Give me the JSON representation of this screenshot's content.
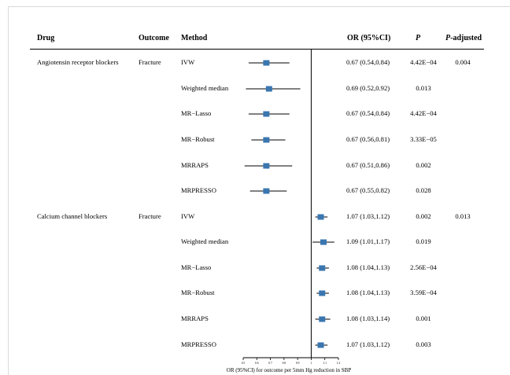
{
  "headers": {
    "drug": "Drug",
    "outcome": "Outcome",
    "method": "Method",
    "or": "OR (95%CI)",
    "p": "P",
    "p_adjusted": "P-adjusted"
  },
  "rows": [
    {
      "drug": "Angiotensin receptor blockers",
      "outcome": "Fracture",
      "method": "IVW",
      "or_text": "0.67 (0.54,0.84)",
      "p": "4.42E−04",
      "p_adjusted": "0.004"
    },
    {
      "drug": "",
      "outcome": "",
      "method": "Weighted median",
      "or_text": "0.69 (0.52,0.92)",
      "p": "0.013",
      "p_adjusted": ""
    },
    {
      "drug": "",
      "outcome": "",
      "method": "MR−Lasso",
      "or_text": "0.67 (0.54,0.84)",
      "p": "4.42E−04",
      "p_adjusted": ""
    },
    {
      "drug": "",
      "outcome": "",
      "method": "MR−Robust",
      "or_text": "0.67 (0.56,0.81)",
      "p": "3.33E−05",
      "p_adjusted": ""
    },
    {
      "drug": "",
      "outcome": "",
      "method": "MRRAPS",
      "or_text": "0.67 (0.51,0.86)",
      "p": "0.002",
      "p_adjusted": ""
    },
    {
      "drug": "",
      "outcome": "",
      "method": "MRPRESSO",
      "or_text": "0.67 (0.55,0.82)",
      "p": "0.028",
      "p_adjusted": ""
    },
    {
      "drug": "Calcium channel blockers",
      "outcome": "Fracture",
      "method": "IVW",
      "or_text": "1.07 (1.03,1.12)",
      "p": "0.002",
      "p_adjusted": "0.013"
    },
    {
      "drug": "",
      "outcome": "",
      "method": "Weighted median",
      "or_text": "1.09 (1.01,1.17)",
      "p": "0.019",
      "p_adjusted": ""
    },
    {
      "drug": "",
      "outcome": "",
      "method": "MR−Lasso",
      "or_text": "1.08 (1.04,1.13)",
      "p": "2.56E−04",
      "p_adjusted": ""
    },
    {
      "drug": "",
      "outcome": "",
      "method": "MR−Robust",
      "or_text": "1.08 (1.04,1.13)",
      "p": "3.59E−04",
      "p_adjusted": ""
    },
    {
      "drug": "",
      "outcome": "",
      "method": "MRRAPS",
      "or_text": "1.08 (1.03,1.14)",
      "p": "0.001",
      "p_adjusted": ""
    },
    {
      "drug": "",
      "outcome": "",
      "method": "MRPRESSO",
      "or_text": "1.07 (1.03,1.12)",
      "p": "0.003",
      "p_adjusted": ""
    }
  ],
  "chart_data": {
    "type": "forest",
    "xlabel": "OR (95%CI) for outcome per 5mm Hg reduction in SBP",
    "xlim": [
      0.5,
      1.2
    ],
    "xticks": [
      "0.5",
      "0.6",
      "0.7",
      "0.8",
      "0.9",
      "1",
      "1.1",
      "1.2"
    ],
    "reference_line": 1,
    "marker_color": "#3a76b0",
    "points": [
      {
        "or": 0.67,
        "lo": 0.54,
        "hi": 0.84
      },
      {
        "or": 0.69,
        "lo": 0.52,
        "hi": 0.92
      },
      {
        "or": 0.67,
        "lo": 0.54,
        "hi": 0.84
      },
      {
        "or": 0.67,
        "lo": 0.56,
        "hi": 0.81
      },
      {
        "or": 0.67,
        "lo": 0.51,
        "hi": 0.86
      },
      {
        "or": 0.67,
        "lo": 0.55,
        "hi": 0.82
      },
      {
        "or": 1.07,
        "lo": 1.03,
        "hi": 1.12
      },
      {
        "or": 1.09,
        "lo": 1.01,
        "hi": 1.17
      },
      {
        "or": 1.08,
        "lo": 1.04,
        "hi": 1.13
      },
      {
        "or": 1.08,
        "lo": 1.04,
        "hi": 1.13
      },
      {
        "or": 1.08,
        "lo": 1.03,
        "hi": 1.14
      },
      {
        "or": 1.07,
        "lo": 1.03,
        "hi": 1.12
      }
    ]
  }
}
